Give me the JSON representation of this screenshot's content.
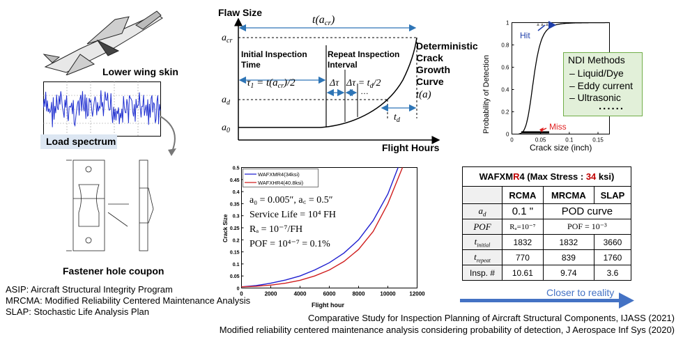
{
  "left": {
    "lower_wing_label": "Lower wing skin",
    "load_spectrum_label": "Load spectrum",
    "fastener_label": "Fastener hole coupon",
    "acronyms": [
      "ASIP: Aircraft Structural Integrity Program",
      "MRCMA: Modified Reliability Centered Maintenance Analysis",
      "SLAP: Stochastic Life Analysis Plan"
    ]
  },
  "crack_growth": {
    "y_title": "Flaw Size",
    "x_title": "Flight Hours",
    "t_acr": "t(a",
    "t_acr_sub": "cr",
    "acr": "a",
    "acr_sub": "cr",
    "ad": "a",
    "ad_sub": "d",
    "a0": "a",
    "a0_sub": "0",
    "initial_label_1": "Initial Inspection",
    "initial_label_2": "Time",
    "tau1": "τ",
    "tau1_sub": "1",
    "tau1_expr": " = t(a",
    "tau1_expr_sub": "cr",
    "tau1_expr_end": ")/2",
    "repeat_label_1": "Repeat Inspection",
    "repeat_label_2": "Interval",
    "dtau": "Δτ",
    "dtau_expr": "Δτ = t",
    "dtau_expr_sub": "d",
    "dtau_expr_end": "/2",
    "dots": "…",
    "td": "t",
    "td_sub": "d",
    "curve_label": [
      "Deterministic",
      "Crack",
      "Growth",
      "Curve"
    ],
    "ta": "t(a)"
  },
  "pod": {
    "y_label": "Probability of Detection",
    "x_label": "Crack size (inch)",
    "y_ticks": [
      "0",
      "0.2",
      "0.4",
      "0.6",
      "0.8",
      "1"
    ],
    "x_ticks": [
      "0",
      "0.05",
      "0.1",
      "0.15"
    ],
    "hit": "Hit",
    "miss": "Miss",
    "ndi_title": "NDI Methods",
    "ndi_items": [
      "– Liquid/Dye",
      "– Eddy current",
      "– Ultrasonic"
    ],
    "ndi_more": "......",
    "colors": {
      "ndi_bg": "#e2f0d9",
      "ndi_border": "#70ad47",
      "hit": "#1f3faa",
      "miss": "#e02020"
    }
  },
  "chart_data": {
    "type": "line",
    "title": "",
    "xlabel": "Flight hour",
    "ylabel": "Crack Size",
    "xlim": [
      0,
      12000
    ],
    "ylim": [
      0,
      0.5
    ],
    "x_ticks": [
      "0",
      "2000",
      "4000",
      "6000",
      "8000",
      "10000",
      "12000"
    ],
    "y_ticks": [
      "0",
      "0.05",
      "0.1",
      "0.15",
      "0.2",
      "0.25",
      "0.3",
      "0.35",
      "0.4",
      "0.45",
      "0.5"
    ],
    "legend": "top-left",
    "series": [
      {
        "name": "WAFXMR4(34ksi)",
        "color": "#1f1fd0",
        "x": [
          0,
          1000,
          2000,
          3000,
          4000,
          5000,
          6000,
          7000,
          8000,
          9000,
          10000,
          10700
        ],
        "y": [
          0.005,
          0.01,
          0.02,
          0.033,
          0.05,
          0.075,
          0.105,
          0.145,
          0.2,
          0.28,
          0.39,
          0.5
        ]
      },
      {
        "name": "WAFXHR4(40.8ksi)",
        "color": "#d01f1f",
        "x": [
          0,
          1000,
          2000,
          3000,
          4000,
          5000,
          6000,
          7000,
          8000,
          9000,
          10000,
          11000
        ],
        "y": [
          0.005,
          0.007,
          0.012,
          0.02,
          0.032,
          0.05,
          0.075,
          0.11,
          0.16,
          0.235,
          0.35,
          0.5
        ]
      }
    ],
    "annotations": [
      "a₀ = 0.005″, a꜀ = 0.5″",
      "Service Life = 10⁴ FH",
      "Rₐ = 10⁻⁷/FH",
      "POF = 10⁴⁻⁷ = 0.1%"
    ]
  },
  "table": {
    "title_pre": "WAFXM",
    "title_r": "R",
    "title_mid": "4 (Max Stress : ",
    "title_num": "34",
    "title_post": " ksi)",
    "columns": [
      "RCMA",
      "MRCMA",
      "SLAP"
    ],
    "rows": [
      {
        "label": "a",
        "label_sub": "d",
        "cells": [
          "0.1 \"",
          "POD curve"
        ]
      },
      {
        "label": "POF",
        "cells": [
          "Rₐ=10⁻⁷",
          "POF = 10⁻³"
        ]
      },
      {
        "label": "t",
        "label_sub": "initial",
        "cells": [
          "1832",
          "1832",
          "3660"
        ]
      },
      {
        "label": "t",
        "label_sub": "repeat",
        "cells": [
          "770",
          "839",
          "1760"
        ]
      },
      {
        "label": "Insp. #",
        "cells": [
          "10.61",
          "9.74",
          "3.6"
        ]
      }
    ],
    "arrow_label": "Closer to reality",
    "colors": {
      "red": "#c00000",
      "arrow": "#4472c4"
    }
  },
  "refs": [
    "Comparative Study for Inspection Planning of Aircraft Structural Components, IJASS (2021)",
    "Modified reliability centered maintenance analysis considering probability of detection, J Aerospace Inf Sys  (2020)"
  ]
}
